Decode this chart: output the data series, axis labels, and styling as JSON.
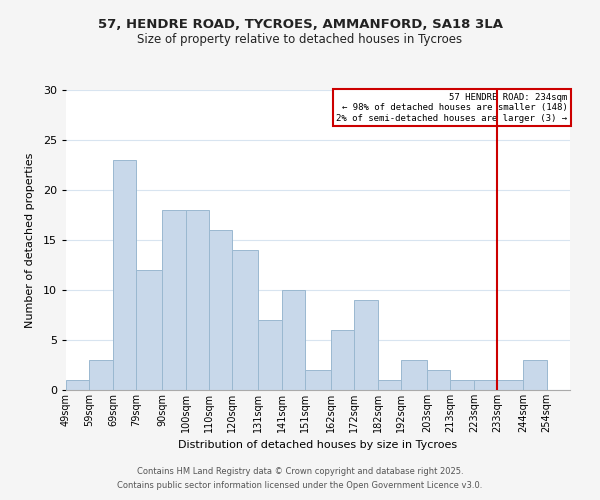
{
  "title_line1": "57, HENDRE ROAD, TYCROES, AMMANFORD, SA18 3LA",
  "title_line2": "Size of property relative to detached houses in Tycroes",
  "xlabel": "Distribution of detached houses by size in Tycroes",
  "ylabel": "Number of detached properties",
  "bin_labels": [
    "49sqm",
    "59sqm",
    "69sqm",
    "79sqm",
    "90sqm",
    "100sqm",
    "110sqm",
    "120sqm",
    "131sqm",
    "141sqm",
    "151sqm",
    "162sqm",
    "172sqm",
    "182sqm",
    "192sqm",
    "203sqm",
    "213sqm",
    "223sqm",
    "233sqm",
    "244sqm",
    "254sqm"
  ],
  "bin_edges": [
    49,
    59,
    69,
    79,
    90,
    100,
    110,
    120,
    131,
    141,
    151,
    162,
    172,
    182,
    192,
    203,
    213,
    223,
    233,
    244,
    254
  ],
  "counts": [
    1,
    3,
    23,
    12,
    18,
    18,
    16,
    14,
    7,
    10,
    2,
    6,
    9,
    1,
    3,
    2,
    1,
    1,
    1,
    3,
    0
  ],
  "bar_color": "#c8d8ea",
  "bar_edgecolor": "#9ab8d0",
  "grid_color": "#d8e4f0",
  "vline_x": 233,
  "vline_color": "#cc0000",
  "annotation_box_text_line1": "57 HENDRE ROAD: 234sqm",
  "annotation_box_text_line2": "← 98% of detached houses are smaller (148)",
  "annotation_box_text_line3": "2% of semi-detached houses are larger (3) →",
  "annotation_box_edgecolor": "#cc0000",
  "annotation_box_facecolor": "#ffffff",
  "ylim": [
    0,
    30
  ],
  "yticks": [
    0,
    5,
    10,
    15,
    20,
    25,
    30
  ],
  "footnote_line1": "Contains HM Land Registry data © Crown copyright and database right 2025.",
  "footnote_line2": "Contains public sector information licensed under the Open Government Licence v3.0.",
  "background_color": "#f5f5f5",
  "plot_background_color": "#ffffff"
}
